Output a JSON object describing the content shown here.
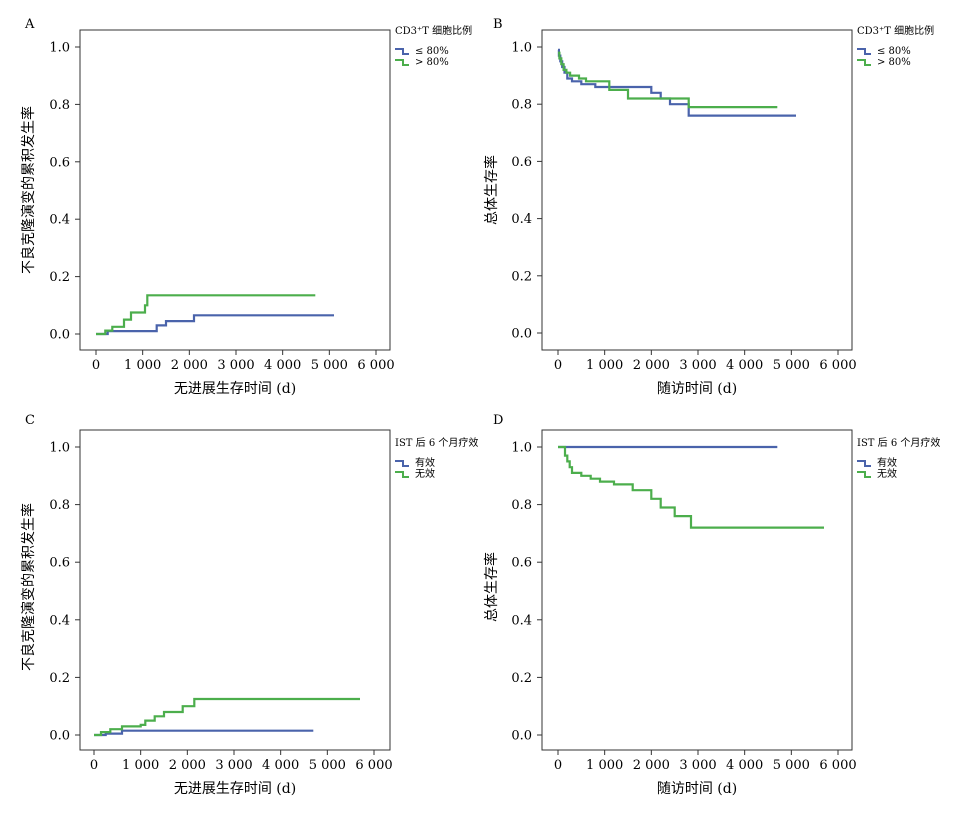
{
  "figure": {
    "panels": [
      "A",
      "B",
      "C",
      "D"
    ]
  },
  "colors": {
    "series_1": "#4a63ab",
    "series_2": "#4cae4c",
    "axis": "#333333"
  },
  "chart_data": [
    {
      "panel": "A",
      "type": "line",
      "step": true,
      "xlabel": "无进展生存时间 (d)",
      "ylabel": "不良克隆演变的累积发生率",
      "xlim": [
        0,
        6000
      ],
      "ylim": [
        0,
        1.0
      ],
      "xticks": [
        "0",
        "1 000",
        "2 000",
        "3 000",
        "4 000",
        "5 000",
        "6 000"
      ],
      "yticks": [
        "0.0",
        "0.2",
        "0.4",
        "0.6",
        "0.8",
        "1.0"
      ],
      "legend_title": "CD3⁺T 细胞比例",
      "series": [
        {
          "name": "≤ 80%",
          "color": "#4a63ab",
          "x": [
            0,
            250,
            1300,
            1500,
            2100,
            5100
          ],
          "y": [
            0.0,
            0.01,
            0.03,
            0.045,
            0.065,
            0.065
          ]
        },
        {
          "name": "> 80%",
          "color": "#4cae4c",
          "x": [
            0,
            200,
            350,
            600,
            750,
            1050,
            1100,
            4700
          ],
          "y": [
            0.0,
            0.012,
            0.025,
            0.05,
            0.075,
            0.1,
            0.135,
            0.135
          ]
        }
      ]
    },
    {
      "panel": "B",
      "type": "line",
      "step": true,
      "xlabel": "随访时间 (d)",
      "ylabel": "总体生存率",
      "xlim": [
        0,
        6000
      ],
      "ylim": [
        0,
        1.0
      ],
      "xticks": [
        "0",
        "1 000",
        "2 000",
        "3 000",
        "4 000",
        "5 000",
        "6 000"
      ],
      "yticks": [
        "0.0",
        "0.2",
        "0.4",
        "0.6",
        "0.8",
        "1.0"
      ],
      "legend_title": "CD3⁺T 细胞比例",
      "series": [
        {
          "name": "≤ 80%",
          "color": "#4a63ab",
          "x": [
            0,
            20,
            50,
            90,
            140,
            200,
            300,
            500,
            800,
            2000,
            2200,
            2400,
            2800,
            5100
          ],
          "y": [
            0.99,
            0.97,
            0.95,
            0.93,
            0.91,
            0.89,
            0.88,
            0.87,
            0.86,
            0.84,
            0.82,
            0.8,
            0.76,
            0.76
          ]
        },
        {
          "name": "> 80%",
          "color": "#4cae4c",
          "x": [
            0,
            30,
            70,
            120,
            180,
            260,
            450,
            600,
            1100,
            1500,
            2800,
            4700
          ],
          "y": [
            0.98,
            0.96,
            0.94,
            0.92,
            0.91,
            0.9,
            0.89,
            0.88,
            0.85,
            0.82,
            0.79,
            0.79
          ]
        }
      ]
    },
    {
      "panel": "C",
      "type": "line",
      "step": true,
      "xlabel": "无进展生存时间 (d)",
      "ylabel": "不良克隆演变的累积发生率",
      "xlim": [
        0,
        6000
      ],
      "ylim": [
        0,
        1.0
      ],
      "xticks": [
        "0",
        "1 000",
        "2 000",
        "3 000",
        "4 000",
        "5 000",
        "6 000"
      ],
      "yticks": [
        "0.0",
        "0.2",
        "0.4",
        "0.6",
        "0.8",
        "1.0"
      ],
      "legend_title": "IST 后 6 个月疗效",
      "series": [
        {
          "name": "有效",
          "color": "#4a63ab",
          "x": [
            0,
            250,
            600,
            4700
          ],
          "y": [
            0.0,
            0.005,
            0.015,
            0.015
          ]
        },
        {
          "name": "无效",
          "color": "#4cae4c",
          "x": [
            0,
            150,
            350,
            600,
            1000,
            1100,
            1300,
            1500,
            1900,
            2150,
            5700
          ],
          "y": [
            0.0,
            0.01,
            0.02,
            0.03,
            0.035,
            0.05,
            0.065,
            0.08,
            0.1,
            0.125,
            0.125
          ]
        }
      ]
    },
    {
      "panel": "D",
      "type": "line",
      "step": true,
      "xlabel": "随访时间 (d)",
      "ylabel": "总体生存率",
      "xlim": [
        0,
        6000
      ],
      "ylim": [
        0,
        1.0
      ],
      "xticks": [
        "0",
        "1 000",
        "2 000",
        "3 000",
        "4 000",
        "5 000",
        "6 000"
      ],
      "yticks": [
        "0.0",
        "0.2",
        "0.4",
        "0.6",
        "0.8",
        "1.0"
      ],
      "legend_title": "IST 后 6 个月疗效",
      "series": [
        {
          "name": "有效",
          "color": "#4a63ab",
          "x": [
            0,
            4700
          ],
          "y": [
            1.0,
            1.0
          ]
        },
        {
          "name": "无效",
          "color": "#4cae4c",
          "x": [
            0,
            150,
            200,
            250,
            300,
            500,
            700,
            900,
            1200,
            1600,
            2000,
            2200,
            2500,
            2850,
            5700
          ],
          "y": [
            1.0,
            0.97,
            0.95,
            0.93,
            0.91,
            0.9,
            0.89,
            0.88,
            0.87,
            0.85,
            0.82,
            0.79,
            0.76,
            0.72,
            0.72
          ]
        }
      ]
    }
  ]
}
